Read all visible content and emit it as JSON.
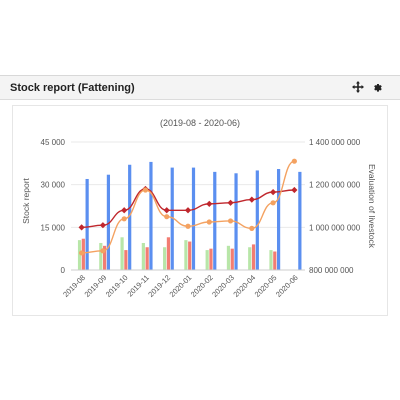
{
  "widget": {
    "title": "Stock report (Fattening)",
    "icons": [
      "move-icon",
      "gear-icon"
    ]
  },
  "colors": {
    "bar_blue": "#5b8ff0",
    "bar_red": "#f27d72",
    "bar_green": "#b8e6a8",
    "line_red": "#c0272d",
    "line_orange": "#f4a261",
    "grid": "#e9e9e9",
    "text": "#555555"
  },
  "chart_data": {
    "type": "bar",
    "title": "(2019-08 - 2020-06)",
    "ylabel": "Stock report",
    "y2label": "Evaluation of livestock",
    "categories": [
      "2019-08",
      "2019-09",
      "2019-10",
      "2019-11",
      "2019-12",
      "2020-01",
      "2020-02",
      "2020-03",
      "2020-04",
      "2020-05",
      "2020-06"
    ],
    "ylim": [
      0,
      45000
    ],
    "yticks": [
      0,
      15000,
      30000,
      45000
    ],
    "ytick_labels": [
      "0",
      "15 000",
      "30 000",
      "45 000"
    ],
    "y2lim": [
      800000000,
      1400000000
    ],
    "y2ticks": [
      800000000,
      1000000000,
      1200000000,
      1400000000
    ],
    "y2tick_labels": [
      "800 000 000",
      "1 000 000 000",
      "1 200 000 000",
      "1 400 000 000"
    ],
    "grid": true,
    "series": [
      {
        "kind": "bar",
        "color": "#b8e6a8",
        "values": [
          10500,
          9500,
          11500,
          9500,
          8000,
          10500,
          7000,
          8500,
          8000,
          7000,
          0
        ]
      },
      {
        "kind": "bar",
        "color": "#f27d72",
        "values": [
          11000,
          8500,
          7000,
          8000,
          11500,
          10000,
          7500,
          7500,
          9000,
          6500,
          0
        ]
      },
      {
        "kind": "bar",
        "color": "#5b8ff0",
        "values": [
          32000,
          33500,
          37000,
          38000,
          36000,
          36000,
          34500,
          34000,
          35000,
          35500,
          34500
        ]
      },
      {
        "kind": "line",
        "axis": "right",
        "color": "#c0272d",
        "values": [
          1000000000,
          1010000000,
          1080000000,
          1180000000,
          1080000000,
          1080000000,
          1110000000,
          1115000000,
          1130000000,
          1165000000,
          1175000000
        ]
      },
      {
        "kind": "line",
        "axis": "right",
        "color": "#f4a261",
        "values": [
          880000000,
          890000000,
          1040000000,
          1175000000,
          1050000000,
          1005000000,
          1025000000,
          1030000000,
          995000000,
          1115000000,
          1310000000
        ]
      }
    ]
  }
}
